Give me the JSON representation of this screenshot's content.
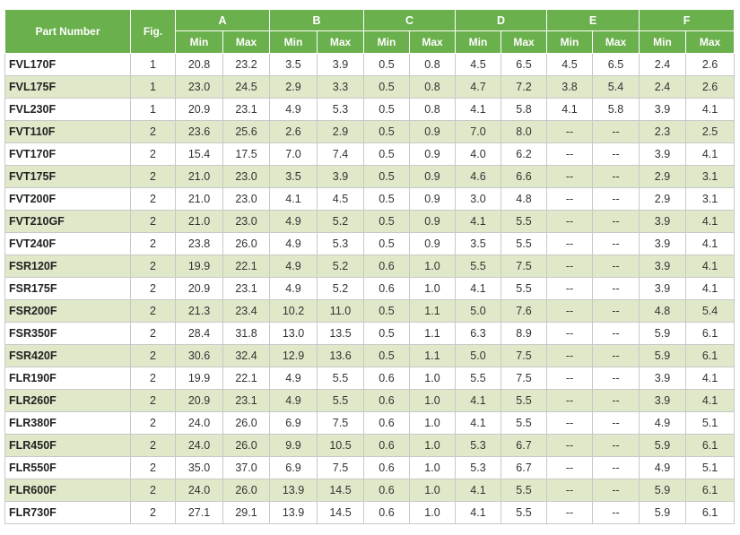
{
  "table": {
    "header": {
      "part_number": "Part Number",
      "fig": "Fig.",
      "groups": [
        "A",
        "B",
        "C",
        "D",
        "E",
        "F"
      ],
      "min_label": "Min",
      "max_label": "Max"
    },
    "rows": [
      [
        "FVL170F",
        "1",
        "20.8",
        "23.2",
        "3.5",
        "3.9",
        "0.5",
        "0.8",
        "4.5",
        "6.5",
        "4.5",
        "6.5",
        "2.4",
        "2.6"
      ],
      [
        "FVL175F",
        "1",
        "23.0",
        "24.5",
        "2.9",
        "3.3",
        "0.5",
        "0.8",
        "4.7",
        "7.2",
        "3.8",
        "5.4",
        "2.4",
        "2.6"
      ],
      [
        "FVL230F",
        "1",
        "20.9",
        "23.1",
        "4.9",
        "5.3",
        "0.5",
        "0.8",
        "4.1",
        "5.8",
        "4.1",
        "5.8",
        "3.9",
        "4.1"
      ],
      [
        "FVT110F",
        "2",
        "23.6",
        "25.6",
        "2.6",
        "2.9",
        "0.5",
        "0.9",
        "7.0",
        "8.0",
        "--",
        "--",
        "2.3",
        "2.5"
      ],
      [
        "FVT170F",
        "2",
        "15.4",
        "17.5",
        "7.0",
        "7.4",
        "0.5",
        "0.9",
        "4.0",
        "6.2",
        "--",
        "--",
        "3.9",
        "4.1"
      ],
      [
        "FVT175F",
        "2",
        "21.0",
        "23.0",
        "3.5",
        "3.9",
        "0.5",
        "0.9",
        "4.6",
        "6.6",
        "--",
        "--",
        "2.9",
        "3.1"
      ],
      [
        "FVT200F",
        "2",
        "21.0",
        "23.0",
        "4.1",
        "4.5",
        "0.5",
        "0.9",
        "3.0",
        "4.8",
        "--",
        "--",
        "2.9",
        "3.1"
      ],
      [
        "FVT210GF",
        "2",
        "21.0",
        "23.0",
        "4.9",
        "5.2",
        "0.5",
        "0.9",
        "4.1",
        "5.5",
        "--",
        "--",
        "3.9",
        "4.1"
      ],
      [
        "FVT240F",
        "2",
        "23.8",
        "26.0",
        "4.9",
        "5.3",
        "0.5",
        "0.9",
        "3.5",
        "5.5",
        "--",
        "--",
        "3.9",
        "4.1"
      ],
      [
        "FSR120F",
        "2",
        "19.9",
        "22.1",
        "4.9",
        "5.2",
        "0.6",
        "1.0",
        "5.5",
        "7.5",
        "--",
        "--",
        "3.9",
        "4.1"
      ],
      [
        "FSR175F",
        "2",
        "20.9",
        "23.1",
        "4.9",
        "5.2",
        "0.6",
        "1.0",
        "4.1",
        "5.5",
        "--",
        "--",
        "3.9",
        "4.1"
      ],
      [
        "FSR200F",
        "2",
        "21.3",
        "23.4",
        "10.2",
        "11.0",
        "0.5",
        "1.1",
        "5.0",
        "7.6",
        "--",
        "--",
        "4.8",
        "5.4"
      ],
      [
        "FSR350F",
        "2",
        "28.4",
        "31.8",
        "13.0",
        "13.5",
        "0.5",
        "1.1",
        "6.3",
        "8.9",
        "--",
        "--",
        "5.9",
        "6.1"
      ],
      [
        "FSR420F",
        "2",
        "30.6",
        "32.4",
        "12.9",
        "13.6",
        "0.5",
        "1.1",
        "5.0",
        "7.5",
        "--",
        "--",
        "5.9",
        "6.1"
      ],
      [
        "FLR190F",
        "2",
        "19.9",
        "22.1",
        "4.9",
        "5.5",
        "0.6",
        "1.0",
        "5.5",
        "7.5",
        "--",
        "--",
        "3.9",
        "4.1"
      ],
      [
        "FLR260F",
        "2",
        "20.9",
        "23.1",
        "4.9",
        "5.5",
        "0.6",
        "1.0",
        "4.1",
        "5.5",
        "--",
        "--",
        "3.9",
        "4.1"
      ],
      [
        "FLR380F",
        "2",
        "24.0",
        "26.0",
        "6.9",
        "7.5",
        "0.6",
        "1.0",
        "4.1",
        "5.5",
        "--",
        "--",
        "4.9",
        "5.1"
      ],
      [
        "FLR450F",
        "2",
        "24.0",
        "26.0",
        "9.9",
        "10.5",
        "0.6",
        "1.0",
        "5.3",
        "6.7",
        "--",
        "--",
        "5.9",
        "6.1"
      ],
      [
        "FLR550F",
        "2",
        "35.0",
        "37.0",
        "6.9",
        "7.5",
        "0.6",
        "1.0",
        "5.3",
        "6.7",
        "--",
        "--",
        "4.9",
        "5.1"
      ],
      [
        "FLR600F",
        "2",
        "24.0",
        "26.0",
        "13.9",
        "14.5",
        "0.6",
        "1.0",
        "4.1",
        "5.5",
        "--",
        "--",
        "5.9",
        "6.1"
      ],
      [
        "FLR730F",
        "2",
        "27.1",
        "29.1",
        "13.9",
        "14.5",
        "0.6",
        "1.0",
        "4.1",
        "5.5",
        "--",
        "--",
        "5.9",
        "6.1"
      ]
    ]
  },
  "colors": {
    "header_green": "#6ab04c",
    "stripe_green": "#dfe9c9",
    "border": "#c8c8c8"
  }
}
